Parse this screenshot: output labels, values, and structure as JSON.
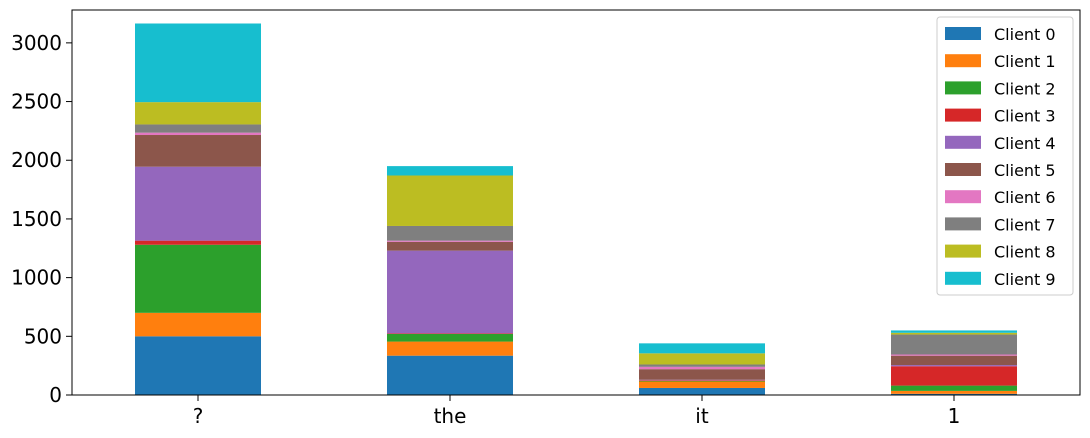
{
  "chart_data": {
    "type": "bar",
    "stacked": true,
    "categories": [
      "?",
      "the",
      "it",
      "1"
    ],
    "series": [
      {
        "name": "Client 0",
        "color": "#1f77b4",
        "values": [
          500,
          335,
          60,
          10
        ]
      },
      {
        "name": "Client 1",
        "color": "#ff7f0e",
        "values": [
          200,
          120,
          55,
          25
        ]
      },
      {
        "name": "Client 2",
        "color": "#2ca02c",
        "values": [
          580,
          65,
          5,
          45
        ]
      },
      {
        "name": "Client 3",
        "color": "#d62728",
        "values": [
          35,
          5,
          5,
          165
        ]
      },
      {
        "name": "Client 4",
        "color": "#9467bd",
        "values": [
          630,
          705,
          5,
          10
        ]
      },
      {
        "name": "Client 5",
        "color": "#8c564b",
        "values": [
          270,
          75,
          90,
          80
        ]
      },
      {
        "name": "Client 6",
        "color": "#e377c2",
        "values": [
          20,
          10,
          20,
          10
        ]
      },
      {
        "name": "Client 7",
        "color": "#7f7f7f",
        "values": [
          70,
          125,
          20,
          170
        ]
      },
      {
        "name": "Client 8",
        "color": "#bcbd22",
        "values": [
          190,
          430,
          95,
          15
        ]
      },
      {
        "name": "Client 9",
        "color": "#17becf",
        "values": [
          670,
          80,
          85,
          20
        ]
      }
    ],
    "ylim": [
      0,
      3280
    ],
    "yticks": [
      0,
      500,
      1000,
      1500,
      2000,
      2500,
      3000
    ],
    "xlabel": "",
    "ylabel": "",
    "title": "",
    "grid": false,
    "legend_position": "top-right"
  }
}
